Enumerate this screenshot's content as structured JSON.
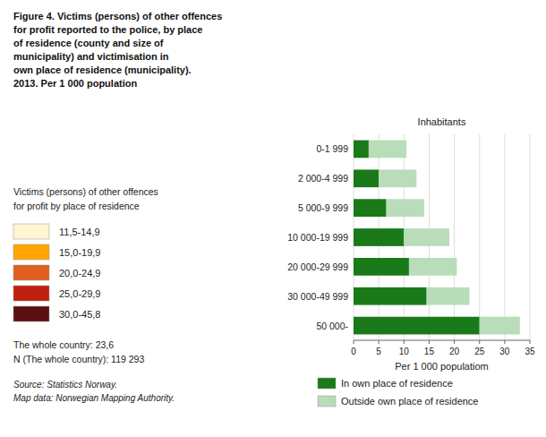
{
  "chart_data": {
    "type": "bar",
    "orientation": "horizontal",
    "stacked": true,
    "title": "Figure 4. Victims (persons) of other offences\nfor profit reported to the police, by place\nof residence (county and size of\nmunicipality) and victimisation in\nown place of residence (municipality).\n2013. Per 1 000 population",
    "xlabel": "Per 1 000 populatiom",
    "ylabel": "Inhabitants",
    "categories": [
      "0-1 999",
      "2 000-4 999",
      "5 000-9 999",
      "10 000-19 999",
      "20 000-29 999",
      "30 000-49 999",
      "50 000-"
    ],
    "series": [
      {
        "name": "In own place of residence",
        "color": "#1a7a1a",
        "values": [
          3.0,
          5.0,
          6.5,
          10.0,
          11.0,
          14.5,
          25.0
        ]
      },
      {
        "name": "Outside own place of residence",
        "color": "#b8ddb8",
        "values": [
          7.5,
          7.5,
          7.5,
          9.0,
          9.5,
          8.5,
          8.0
        ]
      }
    ],
    "xlim": [
      0,
      35
    ],
    "xticks": [
      0,
      5,
      10,
      15,
      20,
      25,
      30,
      35
    ],
    "grid": true,
    "legend": "bottom",
    "annotations": [
      [
        "Victims (persons) of other offences",
        "for profit by place of residence"
      ],
      [
        {
          "text": "11,5-14,9",
          "color": "#FFF5D0"
        },
        {
          "text": "15,0-19,9",
          "color": "#FFA500"
        },
        {
          "text": "20,0-24,9",
          "color": "#E06020"
        },
        {
          "text": "25,0-29,9",
          "color": "#C02010"
        },
        {
          "text": "30,0-45,8",
          "color": "#5C1010"
        }
      ],
      [
        "The whole country: 23,6",
        "N (The whole country): 119 293"
      ],
      [
        "Source: Statistics Norway.",
        "Map data: Norwegian Mapping Authority."
      ]
    ]
  }
}
